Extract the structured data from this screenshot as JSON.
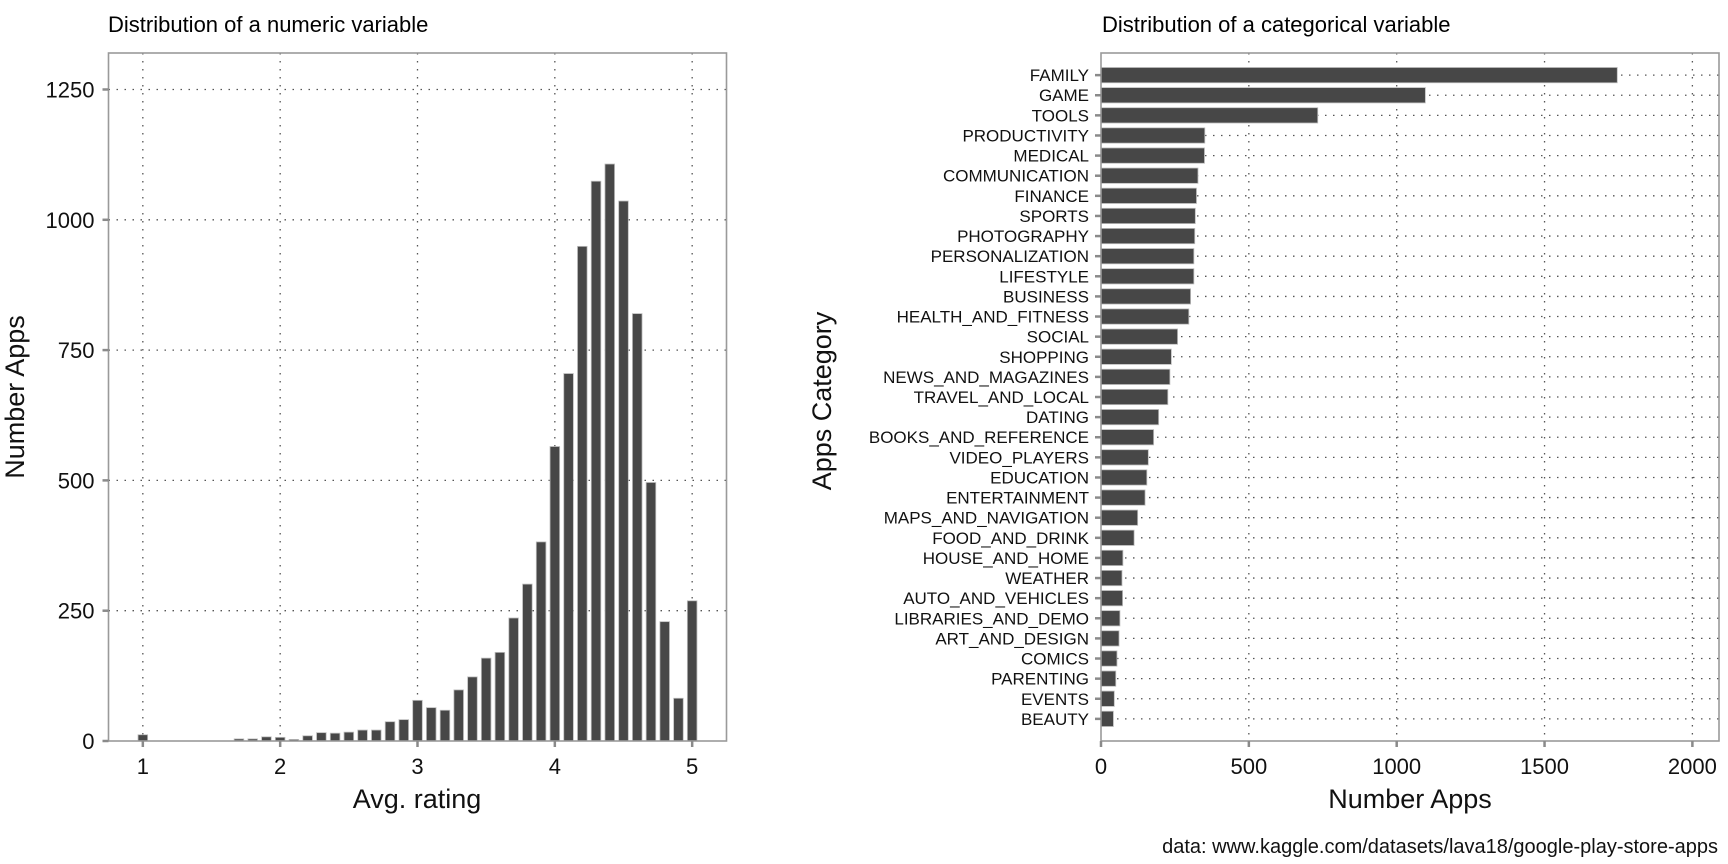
{
  "chart_data": [
    {
      "type": "bar",
      "title": "Distribution of a numeric variable",
      "xlabel": "Avg. rating",
      "ylabel": "Number Apps",
      "xlim": [
        0.75,
        5.25
      ],
      "ylim": [
        0,
        1320
      ],
      "xticks": [
        1,
        2,
        3,
        4,
        5
      ],
      "xtick_labels": [
        "1",
        "2",
        "3",
        "4",
        "5"
      ],
      "yticks": [
        0,
        250,
        500,
        750,
        1000,
        1250
      ],
      "ytick_labels": [
        "0",
        "250",
        "500",
        "750",
        "1000",
        "1250"
      ],
      "grid": true,
      "bin_width": 0.1,
      "x": [
        1.0,
        1.7,
        1.8,
        1.9,
        2.0,
        2.1,
        2.2,
        2.3,
        2.4,
        2.5,
        2.6,
        2.7,
        2.8,
        2.9,
        3.0,
        3.1,
        3.2,
        3.3,
        3.4,
        3.5,
        3.6,
        3.7,
        3.8,
        3.9,
        4.0,
        4.1,
        4.2,
        4.3,
        4.4,
        4.5,
        4.6,
        4.7,
        4.8,
        4.9,
        5.0
      ],
      "values": [
        12,
        4,
        4,
        8,
        7,
        3,
        10,
        16,
        15,
        17,
        21,
        21,
        37,
        41,
        78,
        64,
        59,
        98,
        123,
        159,
        170,
        236,
        301,
        382,
        565,
        705,
        949,
        1074,
        1107,
        1036,
        820,
        496,
        229,
        82,
        269
      ]
    },
    {
      "type": "bar",
      "orientation": "horizontal",
      "title": "Distribution of a categorical variable",
      "xlabel": "Number Apps",
      "ylabel": "Apps Category",
      "xlim": [
        0,
        2090
      ],
      "xticks": [
        0,
        500,
        1000,
        1500,
        2000
      ],
      "xtick_labels": [
        "0",
        "500",
        "1000",
        "1500",
        "2000"
      ],
      "grid": true,
      "categories": [
        "FAMILY",
        "GAME",
        "TOOLS",
        "PRODUCTIVITY",
        "MEDICAL",
        "COMMUNICATION",
        "FINANCE",
        "SPORTS",
        "PHOTOGRAPHY",
        "PERSONALIZATION",
        "LIFESTYLE",
        "BUSINESS",
        "HEALTH_AND_FITNESS",
        "SOCIAL",
        "SHOPPING",
        "NEWS_AND_MAGAZINES",
        "TRAVEL_AND_LOCAL",
        "DATING",
        "BOOKS_AND_REFERENCE",
        "VIDEO_PLAYERS",
        "EDUCATION",
        "ENTERTAINMENT",
        "MAPS_AND_NAVIGATION",
        "FOOD_AND_DRINK",
        "HOUSE_AND_HOME",
        "WEATHER",
        "AUTO_AND_VEHICLES",
        "LIBRARIES_AND_DEMO",
        "ART_AND_DESIGN",
        "COMICS",
        "PARENTING",
        "EVENTS",
        "BEAUTY"
      ],
      "values": [
        1746,
        1097,
        733,
        351,
        350,
        328,
        323,
        319,
        317,
        314,
        314,
        303,
        297,
        259,
        238,
        233,
        226,
        195,
        178,
        160,
        155,
        149,
        124,
        112,
        74,
        71,
        73,
        64,
        61,
        54,
        50,
        45,
        42
      ],
      "caption": "data: www.kaggle.com/datasets/lava18/google-play-store-apps"
    }
  ]
}
